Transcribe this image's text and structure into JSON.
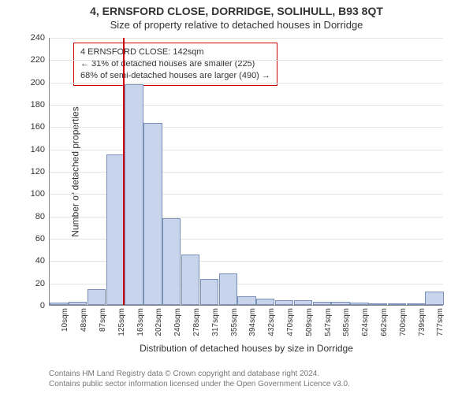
{
  "title_line1": "4, ERNSFORD CLOSE, DORRIDGE, SOLIHULL, B93 8QT",
  "title_line2": "Size of property relative to detached houses in Dorridge",
  "chart": {
    "type": "histogram",
    "xlabel": "Distribution of detached houses by size in Dorridge",
    "ylabel": "Number of detached properties",
    "ylim": [
      0,
      240
    ],
    "ytick_step": 20,
    "x_categories": [
      "10sqm",
      "48sqm",
      "87sqm",
      "125sqm",
      "163sqm",
      "202sqm",
      "240sqm",
      "278sqm",
      "317sqm",
      "355sqm",
      "394sqm",
      "432sqm",
      "470sqm",
      "509sqm",
      "547sqm",
      "585sqm",
      "624sqm",
      "662sqm",
      "700sqm",
      "739sqm",
      "777sqm"
    ],
    "values": [
      2,
      3,
      14,
      135,
      198,
      163,
      78,
      45,
      23,
      28,
      8,
      6,
      4,
      4,
      3,
      3,
      2,
      0,
      0,
      1,
      12
    ],
    "bar_color": "#c7d4ec",
    "bar_border_color": "#7a8fb8",
    "grid_color": "#e5e5e5",
    "background_color": "#ffffff",
    "title_fontsize": 14,
    "label_fontsize": 12,
    "tick_fontsize": 11
  },
  "marker": {
    "position_index": 3.4,
    "color": "#cc0000"
  },
  "callout": {
    "line1": "4 ERNSFORD CLOSE: 142sqm",
    "line2": "← 31% of detached houses are smaller (225)",
    "line3": "68% of semi-detached houses are larger (490) →",
    "border_color": "#cc0000"
  },
  "footer": {
    "line1": "Contains HM Land Registry data © Crown copyright and database right 2024.",
    "line2": "Contains public sector information licensed under the Open Government Licence v3.0."
  }
}
